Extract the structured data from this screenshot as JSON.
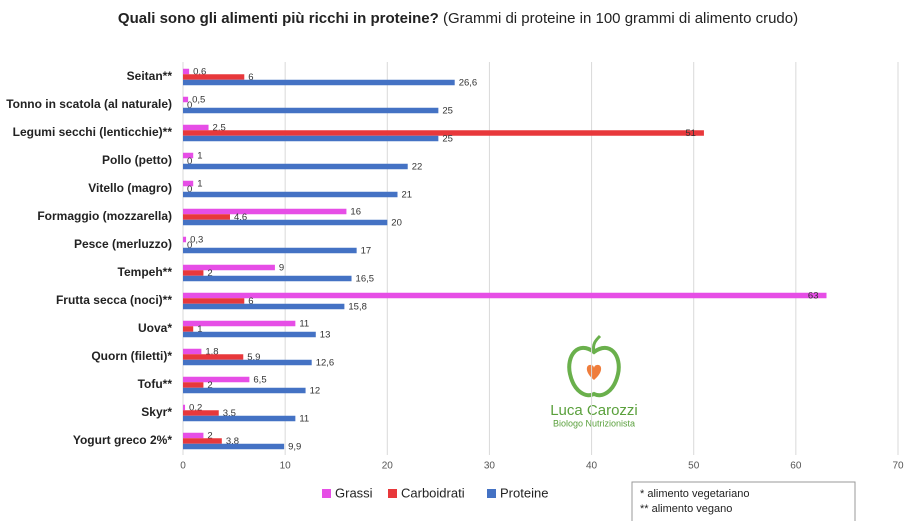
{
  "chart_data": {
    "type": "bar",
    "orientation": "horizontal",
    "title": "Quali sono gli alimenti più ricchi in proteine?",
    "subtitle": "(Grammi di proteine in 100 grammi di alimento crudo)",
    "categories": [
      "Seitan**",
      "Tonno in scatola (al naturale)",
      "Legumi secchi (lenticchie)**",
      "Pollo (petto)",
      "Vitello (magro)",
      "Formaggio (mozzarella)",
      "Pesce (merluzzo)",
      "Tempeh**",
      "Frutta secca (noci)**",
      "Uova*",
      "Quorn (filetti)*",
      "Tofu**",
      "Skyr*",
      "Yogurt greco 2%*"
    ],
    "series": [
      {
        "name": "Grassi",
        "color": "#e64ee6",
        "values": [
          0.6,
          0.5,
          2.5,
          1,
          1,
          16,
          0.3,
          9,
          63,
          11,
          1.8,
          6.5,
          0.2,
          2
        ],
        "value_labels": [
          "0,6",
          "0,5",
          "2,5",
          "1",
          "1",
          "16",
          "0,3",
          "9",
          "63",
          "11",
          "1,8",
          "6,5",
          "0,2",
          "2"
        ]
      },
      {
        "name": "Carboidrati",
        "color": "#e8383b",
        "values": [
          6,
          0,
          51,
          0,
          0,
          4.6,
          0,
          2,
          6,
          1,
          5.9,
          2,
          3.5,
          3.8
        ],
        "value_labels": [
          "6",
          "0",
          "51",
          "0",
          "0",
          "4,6",
          "0",
          "2",
          "6",
          "1",
          "5,9",
          "2",
          "3,5",
          "3,8"
        ]
      },
      {
        "name": "Proteine",
        "color": "#4472c4",
        "values": [
          26.6,
          25,
          25,
          22,
          21,
          20,
          17,
          16.5,
          15.8,
          13,
          12.6,
          12,
          11,
          9.9
        ],
        "value_labels": [
          "26,6",
          "25",
          "25",
          "22",
          "21",
          "20",
          "17",
          "16,5",
          "15,8",
          "13",
          "12,6",
          "12",
          "11",
          "9,9"
        ]
      }
    ],
    "xlim": [
      0,
      70
    ],
    "xticks": [
      0,
      10,
      20,
      30,
      40,
      50,
      60,
      70
    ],
    "grid": true,
    "legend": "bottom",
    "notes": [
      "* alimento vegetariano",
      "** alimento vegano"
    ],
    "credit": {
      "name": "Luca Carozzi",
      "role": "Biologo Nutrizionista"
    }
  }
}
